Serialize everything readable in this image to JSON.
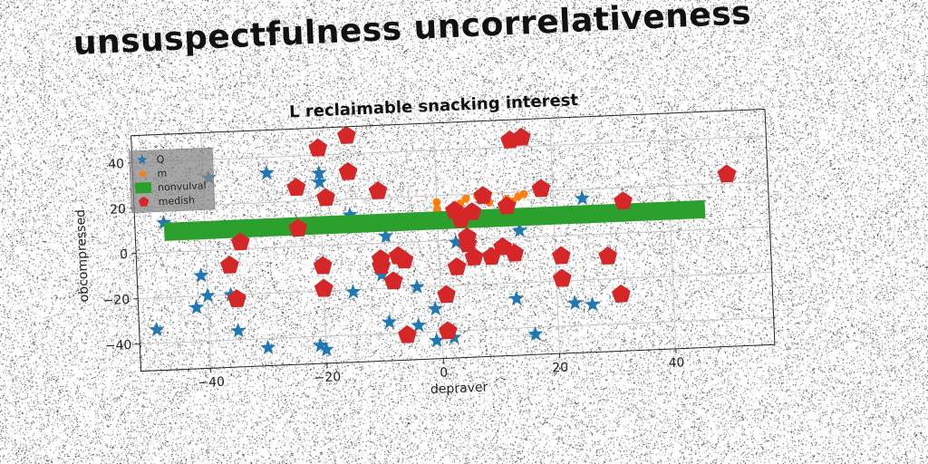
{
  "page": {
    "title": "unsuspectfulness uncorrelativeness"
  },
  "chart_data": {
    "type": "scatter",
    "title": "L reclaimable snacking interest",
    "xlabel": "depraver",
    "ylabel": "obcompressed",
    "xlim": [
      -52,
      57
    ],
    "ylim": [
      -52,
      52
    ],
    "xticks": [
      -40,
      -20,
      0,
      20,
      40
    ],
    "yticks": [
      -40,
      -20,
      0,
      20,
      40
    ],
    "grid": true,
    "legend_position": "top-left",
    "series": [
      {
        "name": "Q",
        "marker": "star",
        "color": "#1f77b4",
        "points": [
          [
            -47,
            13
          ],
          [
            -39,
            32
          ],
          [
            -29,
            33
          ],
          [
            -20,
            32
          ],
          [
            -20,
            28
          ],
          [
            -15,
            13
          ],
          [
            -10,
            -14
          ],
          [
            -9,
            3
          ],
          [
            -21,
            -44
          ],
          [
            -20,
            -46
          ],
          [
            -15,
            -21
          ],
          [
            -30,
            -44
          ],
          [
            -35,
            -36
          ],
          [
            -42,
            -25
          ],
          [
            -41,
            -11
          ],
          [
            -40,
            -20
          ],
          [
            -36,
            -20
          ],
          [
            -49,
            -34
          ],
          [
            -9,
            -35
          ],
          [
            -4,
            -37
          ],
          [
            -4,
            -20
          ],
          [
            -1,
            -30
          ],
          [
            -1,
            -44
          ],
          [
            2,
            -43
          ],
          [
            3,
            -1
          ],
          [
            13,
            -27
          ],
          [
            14,
            3
          ],
          [
            16,
            -43
          ],
          [
            23,
            -30
          ],
          [
            26,
            -31
          ],
          [
            25,
            16
          ]
        ]
      },
      {
        "name": "m",
        "marker": "circle",
        "color": "#ff7f0e",
        "points": [
          [
            0,
            17
          ],
          [
            0,
            14
          ],
          [
            3,
            15
          ],
          [
            4,
            16
          ],
          [
            6,
            13
          ],
          [
            7,
            19
          ],
          [
            9,
            16
          ],
          [
            12,
            17
          ],
          [
            13,
            16
          ],
          [
            14,
            18
          ],
          [
            15,
            19
          ],
          [
            2,
            12
          ],
          [
            5,
            18
          ]
        ]
      },
      {
        "name": "nonvulval",
        "marker": "line",
        "color": "#2ca02c",
        "points": [
          [
            -47,
            9
          ],
          [
            46,
            9
          ]
        ]
      },
      {
        "name": "medish",
        "marker": "pentagon",
        "color": "#d62728",
        "points": [
          [
            -20,
            43
          ],
          [
            -15,
            48
          ],
          [
            -15,
            32
          ],
          [
            -24,
            26
          ],
          [
            -19,
            21
          ],
          [
            -10,
            23
          ],
          [
            -34,
            3
          ],
          [
            -24,
            8
          ],
          [
            -36,
            -7
          ],
          [
            -35,
            -22
          ],
          [
            -20,
            -9
          ],
          [
            -20,
            -19
          ],
          [
            -10,
            -7
          ],
          [
            -10,
            -10
          ],
          [
            -7,
            -6
          ],
          [
            -6,
            -8
          ],
          [
            -8,
            -17
          ],
          [
            -6,
            -41
          ],
          [
            1,
            -24
          ],
          [
            1,
            -40
          ],
          [
            3,
            -12
          ],
          [
            5,
            1
          ],
          [
            5,
            -2
          ],
          [
            6,
            -8
          ],
          [
            4,
            9
          ],
          [
            3,
            13
          ],
          [
            6,
            12
          ],
          [
            8,
            19
          ],
          [
            9,
            -8
          ],
          [
            11,
            -4
          ],
          [
            12,
            14
          ],
          [
            13,
            -7
          ],
          [
            13,
            43
          ],
          [
            15,
            44
          ],
          [
            18,
            21
          ],
          [
            21,
            -9
          ],
          [
            21,
            -19
          ],
          [
            29,
            -10
          ],
          [
            31,
            -27
          ],
          [
            32,
            14
          ],
          [
            50,
            24
          ]
        ]
      }
    ]
  }
}
